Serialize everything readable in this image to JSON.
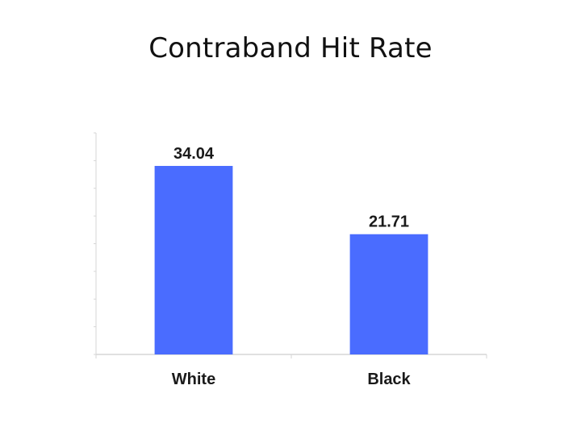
{
  "title": "Contraband Hit Rate",
  "chart_data": {
    "type": "bar",
    "title": "Contraband Hit Rate",
    "categories": [
      "White",
      "Black"
    ],
    "values": [
      34.04,
      21.71
    ],
    "value_labels": [
      "34.04",
      "21.71"
    ],
    "xlabel": "",
    "ylabel": "",
    "ylim": [
      0,
      40
    ],
    "grid": false,
    "bar_color": "#4a6cff",
    "axis_color": "#d6d6d6"
  }
}
